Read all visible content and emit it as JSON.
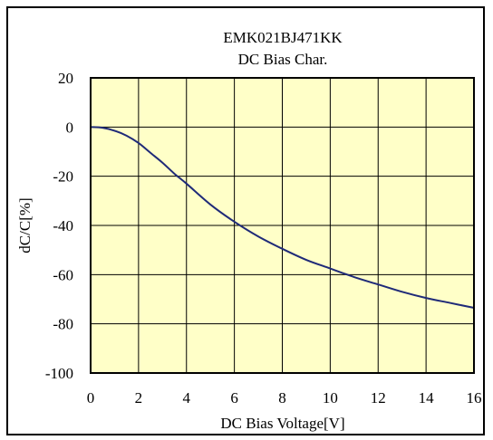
{
  "chart_data": {
    "type": "line",
    "title": "EMK021BJ471KK",
    "subtitle": "DC Bias Char.",
    "xlabel": "DC Bias Voltage[V]",
    "ylabel": "dC/C[%]",
    "xlim": [
      0,
      16
    ],
    "ylim": [
      -100,
      20
    ],
    "xticks": [
      0,
      2,
      4,
      6,
      8,
      10,
      12,
      14,
      16
    ],
    "yticks": [
      20,
      0,
      -20,
      -40,
      -60,
      -80,
      -100
    ],
    "xtick_labels": [
      "0",
      "2",
      "4",
      "6",
      "8",
      "10",
      "12",
      "14",
      "16"
    ],
    "ytick_labels": [
      "20",
      "0",
      "-20",
      "-40",
      "-60",
      "-80",
      "-100"
    ],
    "grid": true,
    "colors": {
      "plot_bg": "#FFFFC8",
      "line": "#1F2A78",
      "grid": "#000000"
    },
    "series": [
      {
        "x": [
          0,
          0.5,
          1,
          1.5,
          2,
          2.5,
          3,
          3.5,
          4,
          5,
          6,
          7,
          8,
          9,
          10,
          11,
          12,
          13,
          14,
          15,
          16
        ],
        "y": [
          0,
          -0.3,
          -1.5,
          -3.5,
          -6.5,
          -10.5,
          -14.5,
          -19,
          -23,
          -31.5,
          -38.5,
          -44.5,
          -49.5,
          -54,
          -57.5,
          -61,
          -64,
          -67,
          -69.5,
          -71.5,
          -73.5
        ]
      }
    ]
  }
}
